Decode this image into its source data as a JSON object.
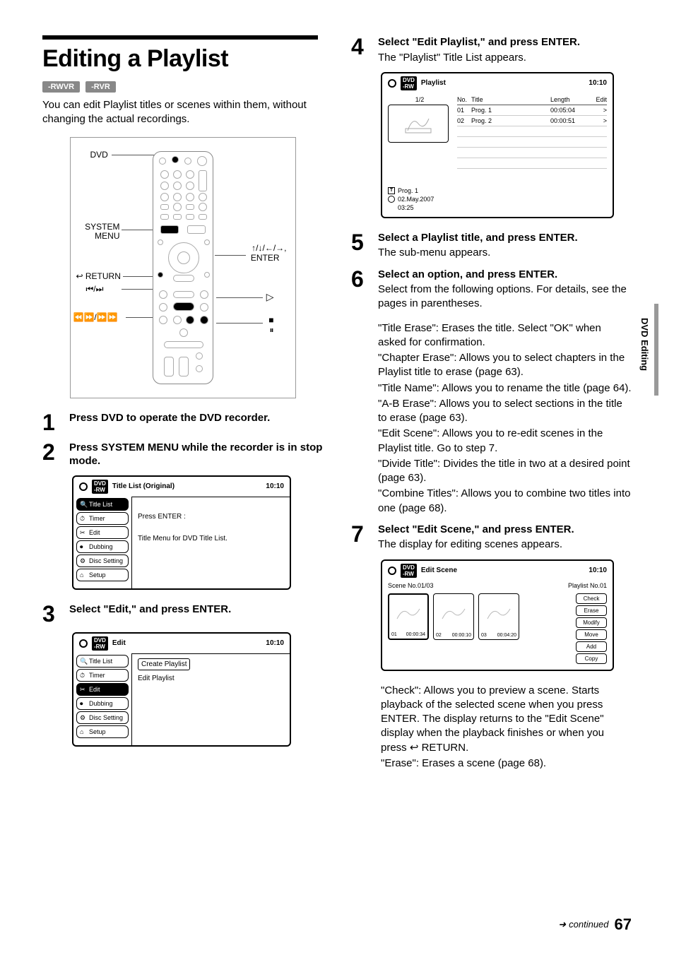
{
  "page": {
    "title": "Editing a Playlist",
    "badges": [
      "-RWVR",
      "-RVR"
    ],
    "intro": "You can edit Playlist titles or scenes within them, without changing the actual recordings.",
    "sideTab": "DVD Editing",
    "continued": "continued",
    "pageNum": "67"
  },
  "remote": {
    "labels": {
      "dvd": "DVD",
      "systemMenu1": "SYSTEM",
      "systemMenu2": "MENU",
      "return": "RETURN",
      "prevNext": "⏮/⏭",
      "rewFwd": "⏪⏩/⏩⏩",
      "arrows": "↑/↓/←/→,",
      "enter": "ENTER",
      "play": "▷",
      "stop": "■",
      "pause": "⏸"
    }
  },
  "steps": {
    "s1": {
      "head": "Press DVD to operate the DVD recorder."
    },
    "s2": {
      "head": "Press SYSTEM MENU while the recorder is in stop mode."
    },
    "s3": {
      "head": "Select \"Edit,\" and press ENTER."
    },
    "s4": {
      "head": "Select \"Edit Playlist,\" and press ENTER.",
      "body": "The \"Playlist\" Title List appears."
    },
    "s5": {
      "head": "Select a Playlist title, and press ENTER.",
      "body": "The sub-menu appears."
    },
    "s6": {
      "head": "Select an option, and press ENTER.",
      "body1": "Select from the following options. For details, see the pages in parentheses.",
      "opt1": "\"Title Erase\": Erases the title. Select \"OK\" when asked for confirmation.",
      "opt2": "\"Chapter Erase\": Allows you to select chapters in the Playlist title to erase (page 63).",
      "opt3": "\"Title Name\": Allows you to rename the title (page 64).",
      "opt4": "\"A-B Erase\": Allows you to select sections in the title to erase (page 63).",
      "opt5": "\"Edit Scene\": Allows you to re-edit scenes in the Playlist title. Go to step 7.",
      "opt6": "\"Divide Title\": Divides the title in two at a desired point (page 63).",
      "opt7": "\"Combine Titles\": Allows you to combine two titles into one (page 68)."
    },
    "s7": {
      "head": "Select \"Edit Scene,\" and press ENTER.",
      "body": "The display for editing scenes appears.",
      "after1": "\"Check\": Allows you to preview a scene. Starts playback of the selected scene when you press ENTER. The display returns to the \"Edit Scene\" display when the playback finishes or when you press ↩ RETURN.",
      "after2": "\"Erase\": Erases a scene (page 68)."
    }
  },
  "osdTitleList": {
    "title": "Title List (Original)",
    "time": "10:10",
    "tabs": [
      "Title List",
      "Timer",
      "Edit",
      "Dubbing",
      "Disc Setting",
      "Setup"
    ],
    "activeTab": 0,
    "line1": "Press ENTER :",
    "line2": "Title Menu for DVD Title List."
  },
  "osdEdit": {
    "title": "Edit",
    "time": "10:10",
    "tabs": [
      "Title List",
      "Timer",
      "Edit",
      "Dubbing",
      "Disc Setting",
      "Setup"
    ],
    "activeTab": 2,
    "items": [
      "Create Playlist",
      "Edit Playlist"
    ]
  },
  "osdPlaylist": {
    "title": "Playlist",
    "time": "10:10",
    "pager": "1/2",
    "hdr": {
      "no": "No.",
      "title": "Title",
      "len": "Length",
      "edit": "Edit"
    },
    "rows": [
      {
        "no": "01",
        "title": "Prog. 1",
        "len": "00:05:04",
        "edit": ">"
      },
      {
        "no": "02",
        "title": "Prog. 2",
        "len": "00:00:51",
        "edit": ">"
      }
    ],
    "info": {
      "name": "Prog. 1",
      "date": "02.May.2007",
      "dur": "03:25"
    }
  },
  "osdScene": {
    "title": "Edit Scene",
    "time": "10:10",
    "sceneNo": "Scene No.01/03",
    "playlistNo": "Playlist No.01",
    "thumbs": [
      {
        "n": "01",
        "t": "00:00:34"
      },
      {
        "n": "02",
        "t": "00:00:10"
      },
      {
        "n": "03",
        "t": "00:04:20"
      }
    ],
    "buttons": [
      "Check",
      "Erase",
      "Modify",
      "Move",
      "Add",
      "Copy"
    ]
  }
}
